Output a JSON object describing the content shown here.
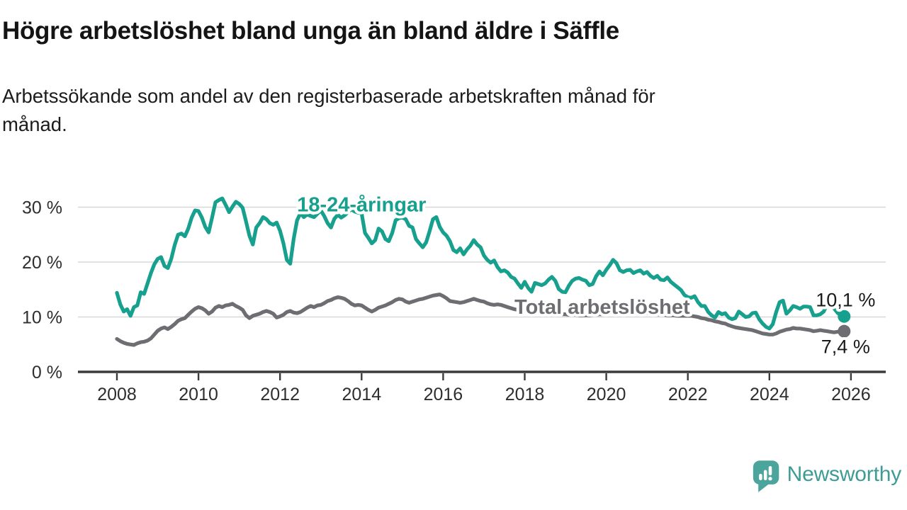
{
  "chart_data": {
    "type": "line",
    "title": "Högre arbetslöshet bland unga än bland äldre i Säffle",
    "subtitle_lines": [
      "Arbetssökande som andel av den registerbaserade arbetskraften månad för",
      "månad."
    ],
    "grid": "horizontal",
    "x": {
      "unit": "year",
      "tick_years": [
        2008,
        2010,
        2012,
        2014,
        2016,
        2018,
        2020,
        2022,
        2024,
        2026
      ],
      "tick_labels": [
        "2008",
        "2010",
        "2012",
        "2014",
        "2016",
        "2018",
        "2020",
        "2022",
        "2024",
        "2026"
      ]
    },
    "y": {
      "unit": "%",
      "tick_values": [
        0,
        10,
        20,
        30
      ],
      "tick_labels": [
        "0 %",
        "10 %",
        "20 %",
        "30 %"
      ],
      "ylim": [
        0,
        32.5
      ]
    },
    "series": [
      {
        "name": "Total arbetslöshet",
        "color": "#6e6e72",
        "line_label": {
          "text": "Total arbetslöshet",
          "x_year": 2019.9,
          "y_value": 11.9
        },
        "end_label": "7,4 %",
        "end_label_side": "below",
        "end_dot": true,
        "start_year": 2008,
        "interval_months": 1,
        "values": [
          6.0,
          5.6,
          5.3,
          5.1,
          5.0,
          4.9,
          5.2,
          5.4,
          5.5,
          5.7,
          6.1,
          6.8,
          7.5,
          7.9,
          8.1,
          7.8,
          8.2,
          8.7,
          9.3,
          9.6,
          9.8,
          10.4,
          11.0,
          11.5,
          11.8,
          11.6,
          11.2,
          10.6,
          11.0,
          11.7,
          12.0,
          11.8,
          12.1,
          12.2,
          12.4,
          12.0,
          11.7,
          11.3,
          10.3,
          9.8,
          10.2,
          10.4,
          10.6,
          10.9,
          11.1,
          10.9,
          10.6,
          9.9,
          10.1,
          10.4,
          10.9,
          11.1,
          10.8,
          10.7,
          10.9,
          11.3,
          11.7,
          12.0,
          11.8,
          12.1,
          12.2,
          12.5,
          12.9,
          13.1,
          13.4,
          13.6,
          13.5,
          13.3,
          12.9,
          12.4,
          12.1,
          12.2,
          12.1,
          11.7,
          11.3,
          11.0,
          11.3,
          11.7,
          11.9,
          12.1,
          12.4,
          12.7,
          13.1,
          13.3,
          13.2,
          12.8,
          12.6,
          12.8,
          13.0,
          13.2,
          13.3,
          13.5,
          13.7,
          13.9,
          14.0,
          14.1,
          13.8,
          13.4,
          12.9,
          12.8,
          12.7,
          12.6,
          12.7,
          12.9,
          13.1,
          13.3,
          13.1,
          12.9,
          12.8,
          12.5,
          12.3,
          12.2,
          12.3,
          12.2,
          12.0,
          11.8,
          11.6,
          11.4,
          11.3,
          11.2,
          11.1,
          11.0,
          10.9,
          10.9,
          10.8,
          10.8,
          10.8,
          10.7,
          10.7,
          10.6,
          10.6,
          10.5,
          10.5,
          10.4,
          10.4,
          10.4,
          10.3,
          10.3,
          10.3,
          10.3,
          10.4,
          10.4,
          10.5,
          10.5,
          10.6,
          10.7,
          10.8,
          10.8,
          10.9,
          10.9,
          10.9,
          10.8,
          10.8,
          10.7,
          10.7,
          10.7,
          10.7,
          10.6,
          10.5,
          10.5,
          10.4,
          10.4,
          10.3,
          10.3,
          10.3,
          10.2,
          10.2,
          10.2,
          10.2,
          10.2,
          10.1,
          10.0,
          9.8,
          9.7,
          9.5,
          9.4,
          9.2,
          9.1,
          8.9,
          8.8,
          8.5,
          8.3,
          8.1,
          8.0,
          7.9,
          7.8,
          7.7,
          7.6,
          7.4,
          7.2,
          7.0,
          6.9,
          6.8,
          6.8,
          7.0,
          7.3,
          7.5,
          7.7,
          7.8,
          8.0,
          7.9,
          7.9,
          7.8,
          7.7,
          7.6,
          7.4,
          7.5,
          7.6,
          7.5,
          7.4,
          7.3,
          7.2,
          7.3,
          7.4,
          7.4
        ]
      },
      {
        "name": "18-24-åringar",
        "color": "#17a08e",
        "line_label": {
          "text": "18-24-åringar",
          "x_year": 2014.0,
          "y_value": 30.5
        },
        "end_label": "10,1 %",
        "end_label_side": "above",
        "end_dot": true,
        "start_year": 2008,
        "interval_months": 1,
        "values": [
          14.4,
          12.3,
          11.0,
          11.4,
          10.2,
          11.8,
          12.1,
          14.5,
          14.2,
          16.1,
          18.0,
          19.6,
          20.6,
          20.9,
          19.3,
          18.9,
          20.6,
          23.1,
          25.0,
          25.2,
          24.7,
          26.1,
          28.1,
          29.4,
          29.3,
          28.1,
          26.4,
          25.4,
          28.1,
          30.9,
          31.3,
          31.6,
          30.4,
          29.1,
          30.1,
          31.0,
          30.6,
          29.9,
          27.4,
          24.8,
          23.2,
          26.3,
          27.1,
          28.2,
          27.8,
          27.1,
          26.8,
          27.2,
          25.7,
          23.4,
          20.4,
          19.7,
          24.2,
          27.6,
          28.9,
          28.2,
          28.7,
          28.4,
          28.2,
          28.8,
          29.4,
          28.4,
          27.1,
          26.3,
          27.9,
          28.6,
          28.1,
          28.5,
          29.1,
          29.6,
          29.2,
          29.0,
          28.9,
          25.3,
          24.4,
          23.4,
          24.0,
          26.1,
          25.6,
          24.2,
          23.8,
          25.3,
          27.6,
          28.0,
          28.1,
          27.8,
          26.6,
          26.3,
          24.2,
          23.4,
          22.7,
          23.6,
          25.6,
          27.8,
          28.2,
          26.4,
          25.4,
          24.8,
          23.8,
          22.2,
          21.8,
          22.5,
          21.4,
          22.3,
          23.0,
          24.0,
          23.2,
          22.7,
          21.2,
          20.4,
          19.9,
          20.3,
          19.1,
          18.3,
          18.5,
          18.1,
          17.3,
          17.0,
          16.1,
          15.3,
          16.4,
          15.3,
          14.6,
          16.2,
          16.0,
          15.8,
          16.1,
          16.8,
          17.3,
          16.6,
          15.1,
          14.6,
          14.5,
          15.7,
          16.6,
          17.0,
          17.1,
          16.8,
          16.6,
          15.8,
          16.0,
          17.4,
          18.3,
          17.6,
          18.6,
          19.4,
          20.4,
          19.8,
          18.5,
          18.2,
          18.5,
          18.6,
          18.0,
          18.3,
          18.5,
          17.9,
          18.2,
          17.5,
          17.1,
          17.5,
          16.8,
          16.7,
          17.2,
          16.4,
          15.9,
          15.4,
          14.9,
          14.0,
          13.6,
          13.5,
          13.8,
          12.7,
          12.0,
          12.0,
          10.9,
          10.3,
          9.9,
          10.9,
          10.5,
          10.7,
          9.9,
          9.6,
          9.8,
          11.0,
          10.5,
          10.0,
          10.1,
          10.7,
          10.8,
          9.6,
          8.8,
          8.2,
          7.9,
          8.7,
          10.9,
          12.7,
          13.0,
          10.6,
          11.2,
          12.0,
          11.8,
          11.5,
          11.9,
          11.9,
          11.8,
          10.3,
          10.3,
          10.5,
          11.0,
          12.3,
          12.6,
          11.6,
          10.8,
          10.3,
          10.1
        ]
      }
    ]
  },
  "branding": {
    "logo_text": "Newsworthy",
    "logo_color": "#4ba59c"
  }
}
